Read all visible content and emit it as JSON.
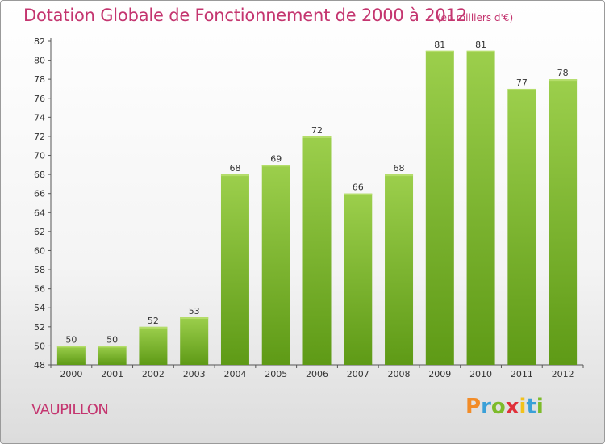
{
  "header": {
    "title": "Dotation Globale de Fonctionnement de 2000 à 2012",
    "subtitle": "(en milliers d'€)"
  },
  "footer": {
    "commune": "VAUPILLON",
    "logo_letters": [
      "P",
      "r",
      "o",
      "x",
      "i",
      "t",
      "i"
    ],
    "logo_colors": [
      "#f28c28",
      "#3aa0d8",
      "#7dbb2a",
      "#e0303a",
      "#f2c21c",
      "#3aa0d8",
      "#7dbb2a"
    ]
  },
  "chart_data": {
    "type": "bar",
    "categories": [
      "2000",
      "2001",
      "2002",
      "2003",
      "2004",
      "2005",
      "2006",
      "2007",
      "2008",
      "2009",
      "2010",
      "2011",
      "2012"
    ],
    "values": [
      50,
      50,
      52,
      53,
      68,
      69,
      72,
      66,
      68,
      81,
      81,
      77,
      78
    ],
    "value_labels": [
      "50",
      "50",
      "52",
      "53",
      "68",
      "69",
      "72",
      "66",
      "68",
      "81",
      "81",
      "77",
      "78"
    ],
    "title": "Dotation Globale de Fonctionnement de 2000 à 2012",
    "subtitle": "(en milliers d'€)",
    "xlabel": "",
    "ylabel": "",
    "ylim": [
      48,
      82
    ],
    "yticks": [
      48,
      50,
      52,
      54,
      56,
      58,
      60,
      62,
      64,
      66,
      68,
      70,
      72,
      74,
      76,
      78,
      80,
      82
    ],
    "ytick_labels": [
      "48",
      "50",
      "52",
      "54",
      "56",
      "58",
      "60",
      "62",
      "64",
      "66",
      "68",
      "70",
      "72",
      "74",
      "76",
      "78",
      "80",
      "82"
    ],
    "grid": false,
    "bar_color_top": "#9ccf4c",
    "bar_color_bottom": "#5e9a16"
  }
}
